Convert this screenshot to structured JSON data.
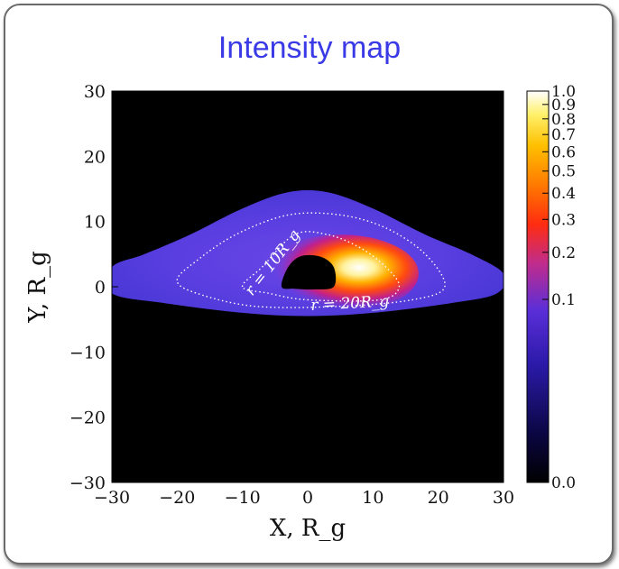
{
  "chart_data": {
    "type": "heatmap",
    "title": "Intensity map",
    "xlabel": "X, R_g",
    "ylabel": "Y, R_g",
    "xlim": [
      -30,
      30
    ],
    "ylim": [
      -30,
      30
    ],
    "x_ticks": [
      "−30",
      "−20",
      "−10",
      "0",
      "10",
      "20",
      "30"
    ],
    "y_ticks": [
      "30",
      "20",
      "10",
      "0",
      "−10",
      "−20",
      "−30"
    ],
    "x_tick_values": [
      -30,
      -20,
      -10,
      0,
      10,
      20,
      30
    ],
    "y_tick_values": [
      30,
      20,
      10,
      0,
      -10,
      -20,
      -30
    ],
    "colorbar": {
      "ticks": [
        "1.0",
        "0.9",
        "0.8",
        "0.7",
        "0.6",
        "0.5",
        "0.4",
        "0.3",
        "0.2",
        "0.1",
        "0.0"
      ],
      "tick_values": [
        1.0,
        0.9,
        0.8,
        0.7,
        0.6,
        0.5,
        0.4,
        0.3,
        0.2,
        0.1,
        0.0
      ],
      "scale": "nonlinear"
    },
    "contour_labels": [
      "r = 10R_g",
      "r = 20R_g"
    ],
    "contours": [
      {
        "label": "r = 10R_g",
        "points": [
          [
            -10,
            0
          ],
          [
            -7,
            3
          ],
          [
            -2,
            8
          ],
          [
            3,
            8
          ],
          [
            8,
            6
          ],
          [
            12,
            3
          ],
          [
            14,
            0
          ],
          [
            11,
            -2
          ],
          [
            0,
            -2
          ],
          [
            -6,
            -1
          ]
        ]
      },
      {
        "label": "r = 20R_g",
        "points": [
          [
            -20,
            1
          ],
          [
            -17,
            4
          ],
          [
            -11,
            8
          ],
          [
            -3,
            11
          ],
          [
            5,
            11
          ],
          [
            12,
            9
          ],
          [
            18,
            5
          ],
          [
            21,
            0
          ],
          [
            16,
            -2
          ],
          [
            5,
            -3
          ],
          [
            -8,
            -3
          ],
          [
            -17,
            -1
          ]
        ]
      }
    ],
    "disk_outline": [
      [
        -30,
        3
      ],
      [
        -25,
        5
      ],
      [
        -18,
        8
      ],
      [
        -10,
        12
      ],
      [
        -3,
        14.5
      ],
      [
        3,
        14.5
      ],
      [
        10,
        12
      ],
      [
        18,
        8
      ],
      [
        25,
        5
      ],
      [
        30,
        2
      ],
      [
        29,
        -1
      ],
      [
        22,
        -2.5
      ],
      [
        10,
        -4
      ],
      [
        0,
        -4.5
      ],
      [
        -10,
        -4
      ],
      [
        -22,
        -2.5
      ],
      [
        -30,
        -1
      ]
    ],
    "shadow_outline": [
      [
        -4,
        0
      ],
      [
        -3,
        3
      ],
      [
        -1,
        4.7
      ],
      [
        2,
        4.6
      ],
      [
        4,
        3
      ],
      [
        4,
        0
      ],
      [
        1,
        -0.4
      ],
      [
        -2,
        -0.3
      ]
    ]
  }
}
